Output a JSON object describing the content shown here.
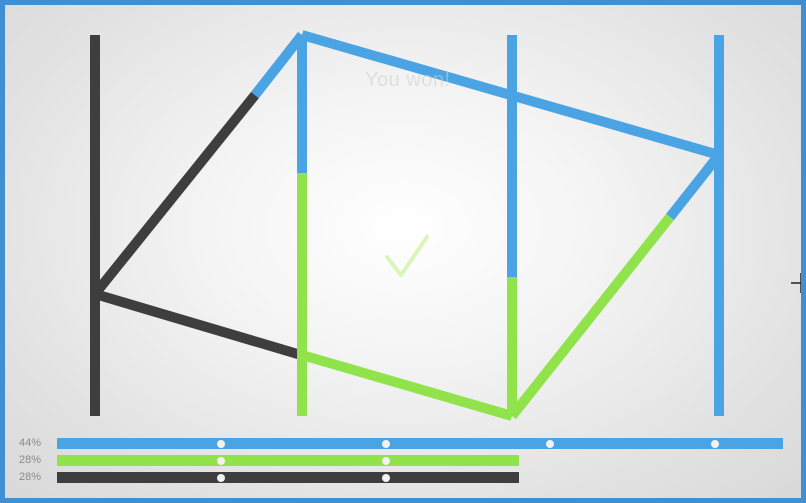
{
  "game": {
    "status_text": "You won!",
    "check_icon": "check-icon",
    "cursor_icon": "crosshair-cursor-icon"
  },
  "colors": {
    "frame": "#3f8fd2",
    "blue": "#4aa3e3",
    "green": "#90e34b",
    "dark": "#3e3e3e",
    "check": "#d9f5b8"
  },
  "stats": [
    {
      "label": "44%",
      "color": "blue",
      "fraction": 1.0,
      "dots": 4
    },
    {
      "label": "28%",
      "color": "green",
      "fraction": 0.6364,
      "dots": 2
    },
    {
      "label": "28%",
      "color": "dark",
      "fraction": 0.6364,
      "dots": 2
    }
  ]
}
